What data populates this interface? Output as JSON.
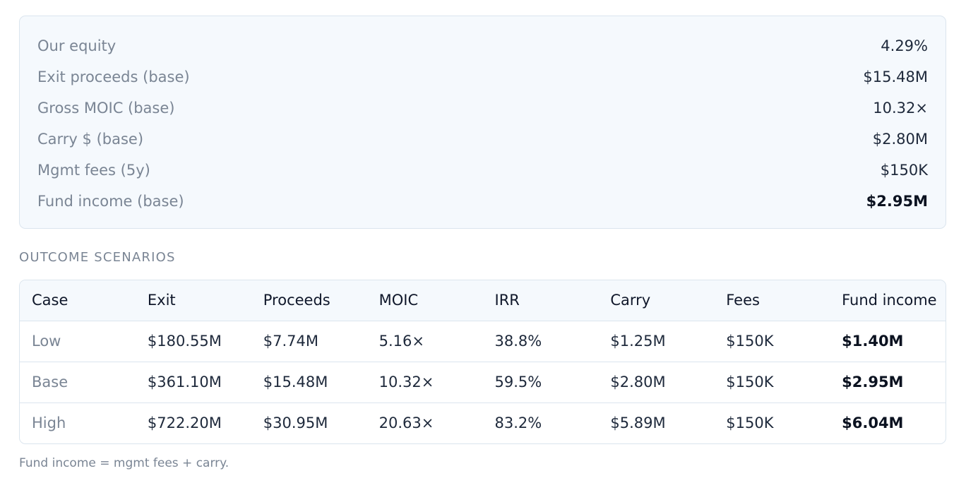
{
  "summary": {
    "rows": [
      {
        "label": "Our equity",
        "value": "4.29%"
      },
      {
        "label": "Exit proceeds (base)",
        "value": "$15.48M"
      },
      {
        "label": "Gross MOIC (base)",
        "value": "10.32×"
      },
      {
        "label": "Carry $ (base)",
        "value": "$2.80M"
      },
      {
        "label": "Mgmt fees (5y)",
        "value": "$150K"
      },
      {
        "label": "Fund income (base)",
        "value": "$2.95M"
      }
    ]
  },
  "scenarios": {
    "heading": "OUTCOME SCENARIOS",
    "columns": [
      "Case",
      "Exit",
      "Proceeds",
      "MOIC",
      "IRR",
      "Carry",
      "Fees",
      "Fund income"
    ],
    "rows": [
      {
        "case": "Low",
        "exit": "$180.55M",
        "proceeds": "$7.74M",
        "moic": "5.16×",
        "irr": "38.8%",
        "carry": "$1.25M",
        "fees": "$150K",
        "fund_income": "$1.40M"
      },
      {
        "case": "Base",
        "exit": "$361.10M",
        "proceeds": "$15.48M",
        "moic": "10.32×",
        "irr": "59.5%",
        "carry": "$2.80M",
        "fees": "$150K",
        "fund_income": "$2.95M"
      },
      {
        "case": "High",
        "exit": "$722.20M",
        "proceeds": "$30.95M",
        "moic": "20.63×",
        "irr": "83.2%",
        "carry": "$5.89M",
        "fees": "$150K",
        "fund_income": "$6.04M"
      }
    ]
  },
  "footnote": "Fund income = mgmt fees + carry."
}
